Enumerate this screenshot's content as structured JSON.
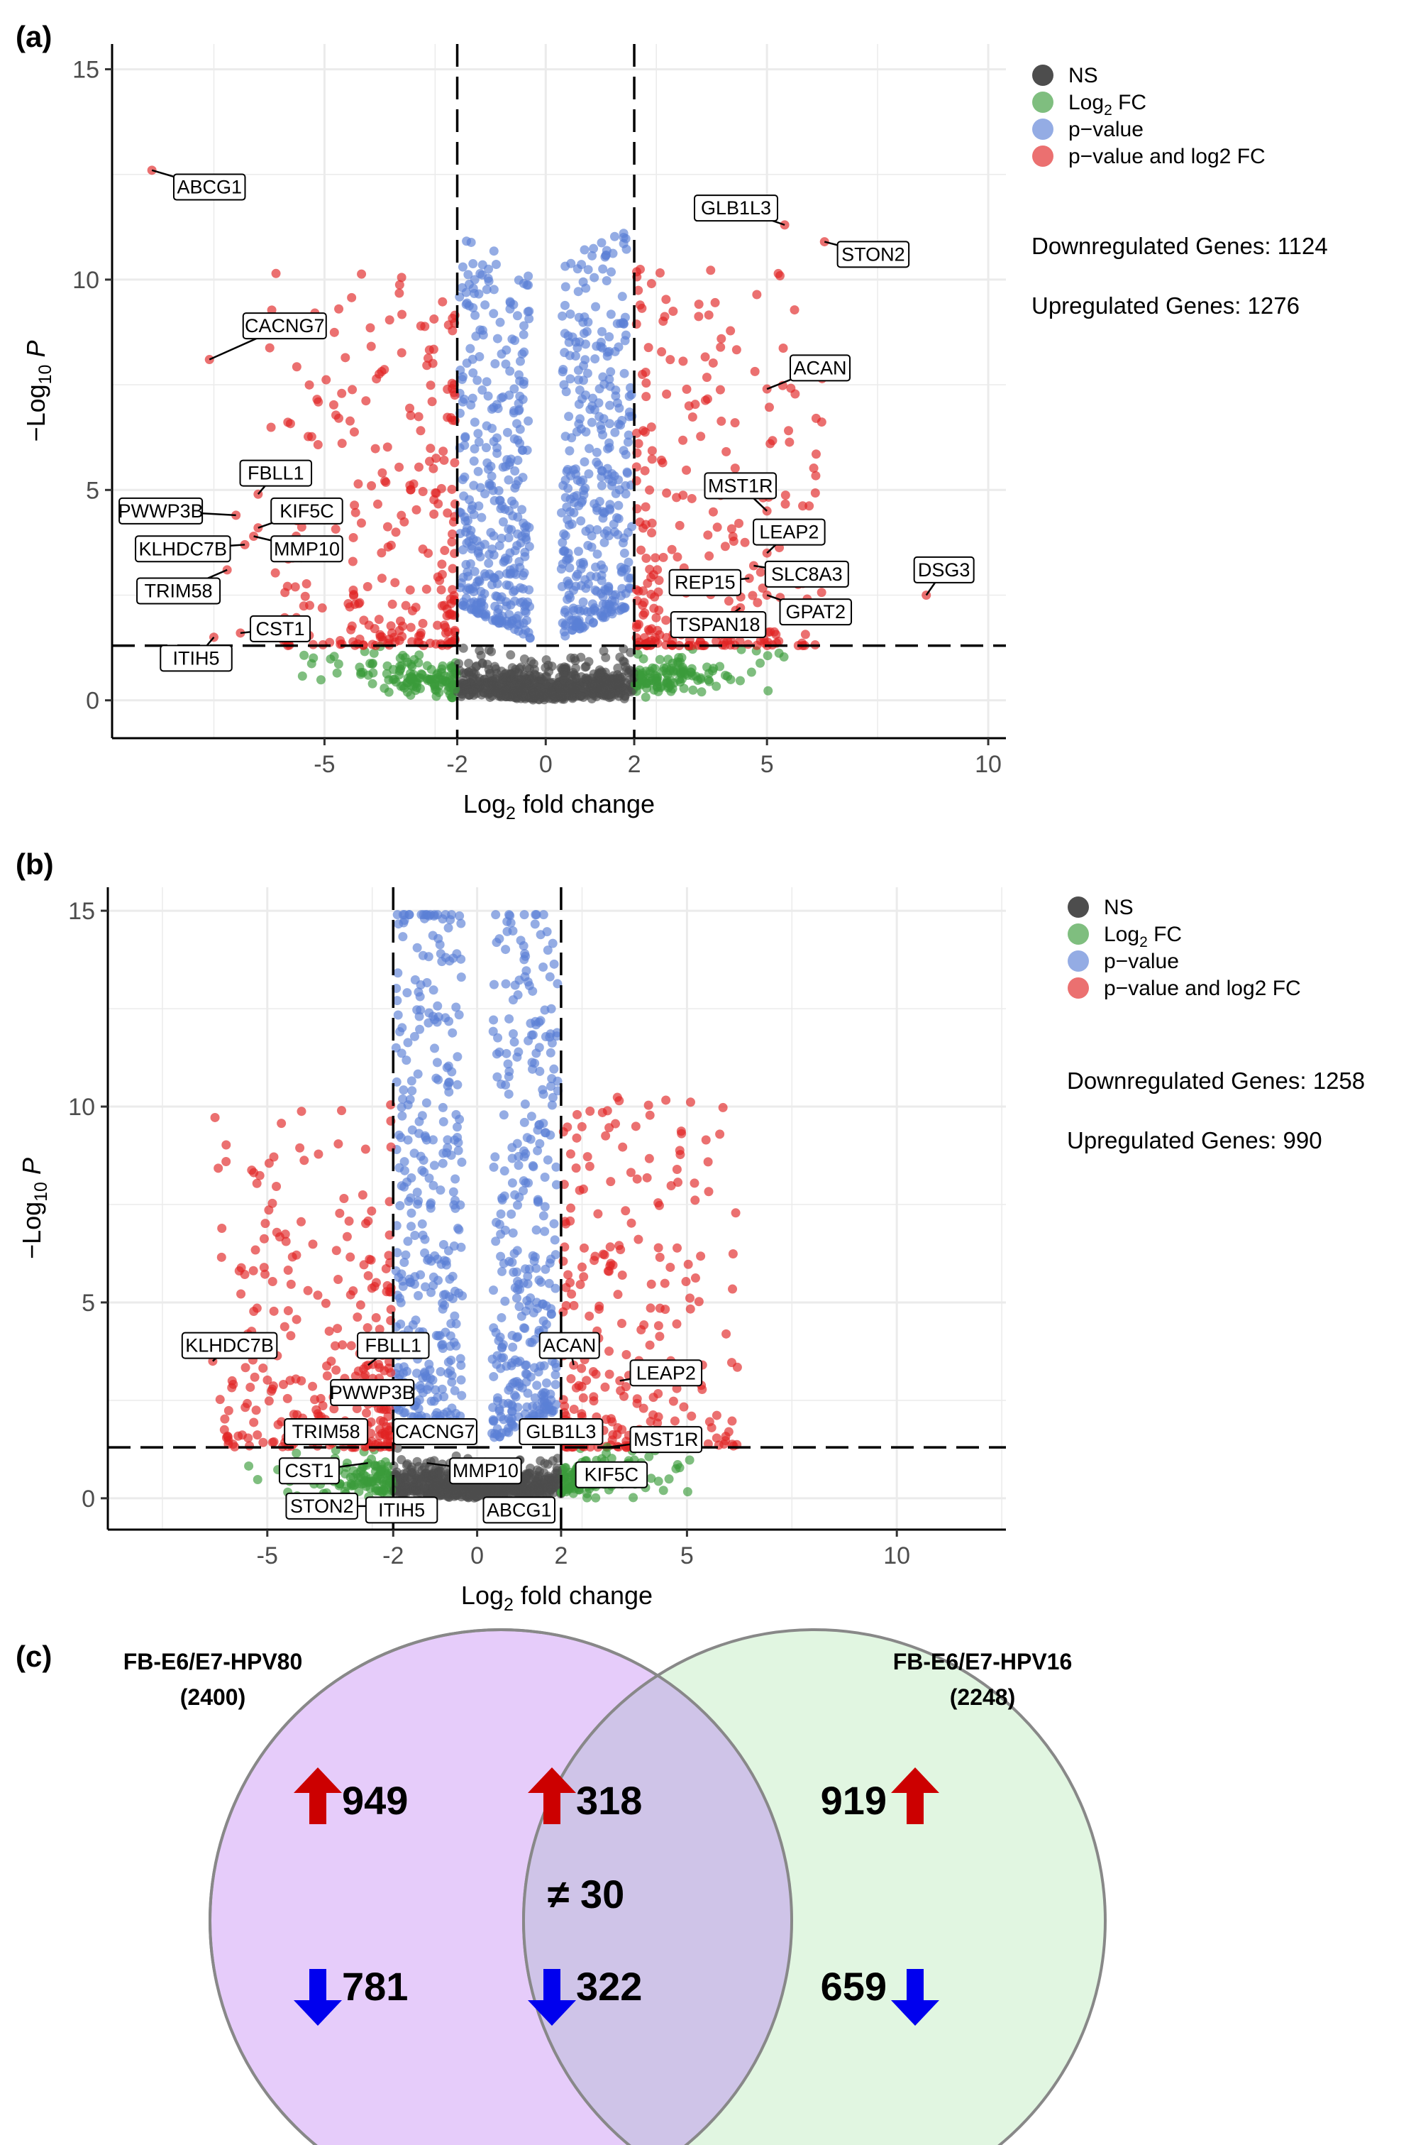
{
  "colors": {
    "ns": "#4d4d4d",
    "log2fc": "#3a9b3a",
    "pvalue": "#5b7fd6",
    "both": "#e02424",
    "grid": "#ebebeb",
    "venn_left": "#e6ccfa",
    "venn_right": "#dcf5dc",
    "up_arrow": "#cc0000",
    "down_arrow": "#0000ee"
  },
  "chart_data": [
    {
      "type": "scatter",
      "panel_label": "(a)",
      "xlabel": "Log2 fold change",
      "ylabel": "−Log10 P",
      "xlim": [
        -9.8,
        10.4
      ],
      "ylim": [
        -0.9,
        15.6
      ],
      "xticks": [
        -5,
        -2,
        0,
        2,
        5,
        10
      ],
      "yticks": [
        0,
        5,
        10,
        15
      ],
      "fc_cutoff": 2,
      "p_cutoff": 1.3,
      "legend": [
        {
          "label": "NS",
          "color_key": "ns"
        },
        {
          "label": "Log2 FC",
          "color_key": "log2fc"
        },
        {
          "label": "p−value",
          "color_key": "pvalue"
        },
        {
          "label": "p−value and log2 FC",
          "color_key": "both"
        }
      ],
      "stats": [
        "Downregulated Genes: 1124",
        "Upregulated Genes: 1276"
      ],
      "genes": [
        {
          "name": "ABCG1",
          "x": -8.9,
          "y": 12.6,
          "lx": -7.6,
          "ly": 12.2
        },
        {
          "name": "GLB1L3",
          "x": 5.4,
          "y": 11.3,
          "lx": 4.3,
          "ly": 11.7
        },
        {
          "name": "STON2",
          "x": 6.3,
          "y": 10.9,
          "lx": 7.4,
          "ly": 10.6
        },
        {
          "name": "CACNG7",
          "x": -7.6,
          "y": 8.1,
          "lx": -5.9,
          "ly": 8.9
        },
        {
          "name": "ACAN",
          "x": 5.0,
          "y": 7.4,
          "lx": 6.2,
          "ly": 7.9
        },
        {
          "name": "FBLL1",
          "x": -6.5,
          "y": 4.9,
          "lx": -6.1,
          "ly": 5.4
        },
        {
          "name": "MST1R",
          "x": 5.0,
          "y": 4.5,
          "lx": 4.4,
          "ly": 5.1
        },
        {
          "name": "PWWP3B",
          "x": -7.0,
          "y": 4.4,
          "lx": -8.7,
          "ly": 4.5
        },
        {
          "name": "KIF5C",
          "x": -6.5,
          "y": 4.1,
          "lx": -5.4,
          "ly": 4.5
        },
        {
          "name": "LEAP2",
          "x": 5.0,
          "y": 3.5,
          "lx": 5.5,
          "ly": 4.0
        },
        {
          "name": "KLHDC7B",
          "x": -6.8,
          "y": 3.7,
          "lx": -8.2,
          "ly": 3.6
        },
        {
          "name": "MMP10",
          "x": -6.6,
          "y": 3.9,
          "lx": -5.4,
          "ly": 3.6
        },
        {
          "name": "DSG3",
          "x": 8.6,
          "y": 2.5,
          "lx": 9.0,
          "ly": 3.1
        },
        {
          "name": "REP15",
          "x": 4.6,
          "y": 2.9,
          "lx": 3.6,
          "ly": 2.8
        },
        {
          "name": "SLC8A3",
          "x": 4.7,
          "y": 3.2,
          "lx": 5.9,
          "ly": 3.0
        },
        {
          "name": "TRIM58",
          "x": -7.2,
          "y": 3.1,
          "lx": -8.3,
          "ly": 2.6
        },
        {
          "name": "GPAT2",
          "x": 5.0,
          "y": 2.5,
          "lx": 6.1,
          "ly": 2.1
        },
        {
          "name": "TSPAN18",
          "x": 4.4,
          "y": 2.2,
          "lx": 3.9,
          "ly": 1.8
        },
        {
          "name": "CST1",
          "x": -6.9,
          "y": 1.6,
          "lx": -6.0,
          "ly": 1.7
        },
        {
          "name": "ITIH5",
          "x": -7.5,
          "y": 1.5,
          "lx": -7.9,
          "ly": 1.0
        }
      ]
    },
    {
      "type": "scatter",
      "panel_label": "(b)",
      "xlabel": "Log2 fold change",
      "ylabel": "−Log10 P",
      "xlim": [
        -8.8,
        12.6
      ],
      "ylim": [
        -0.8,
        15.6
      ],
      "xticks": [
        -5,
        -2,
        0,
        2,
        5,
        10
      ],
      "yticks": [
        0,
        5,
        10,
        15
      ],
      "fc_cutoff": 2,
      "p_cutoff": 1.3,
      "legend": [
        {
          "label": "NS",
          "color_key": "ns"
        },
        {
          "label": "Log2 FC",
          "color_key": "log2fc"
        },
        {
          "label": "p−value",
          "color_key": "pvalue"
        },
        {
          "label": "p−value and log2 FC",
          "color_key": "both"
        }
      ],
      "stats": [
        "Downregulated Genes: 1258",
        "Upregulated Genes: 990"
      ],
      "genes": [
        {
          "name": "KLHDC7B",
          "x": -6.3,
          "y": 3.5,
          "lx": -5.9,
          "ly": 3.9
        },
        {
          "name": "FBLL1",
          "x": -2.6,
          "y": 3.4,
          "lx": -2.0,
          "ly": 3.9
        },
        {
          "name": "ACAN",
          "x": 2.3,
          "y": 3.4,
          "lx": 2.2,
          "ly": 3.9
        },
        {
          "name": "LEAP2",
          "x": 3.4,
          "y": 3.0,
          "lx": 4.5,
          "ly": 3.2
        },
        {
          "name": "PWWP3B",
          "x": -2.6,
          "y": 2.4,
          "lx": -2.5,
          "ly": 2.7
        },
        {
          "name": "TRIM58",
          "x": -3.0,
          "y": 1.7,
          "lx": -3.6,
          "ly": 1.7
        },
        {
          "name": "CACNG7",
          "x": -1.9,
          "y": 1.6,
          "lx": -1.0,
          "ly": 1.7
        },
        {
          "name": "GLB1L3",
          "x": 2.4,
          "y": 1.5,
          "lx": 2.0,
          "ly": 1.7
        },
        {
          "name": "MST1R",
          "x": 3.1,
          "y": 1.3,
          "lx": 4.5,
          "ly": 1.5
        },
        {
          "name": "CST1",
          "x": -2.6,
          "y": 0.9,
          "lx": -4.0,
          "ly": 0.7
        },
        {
          "name": "MMP10",
          "x": -1.2,
          "y": 0.9,
          "lx": 0.2,
          "ly": 0.7
        },
        {
          "name": "KIF5C",
          "x": 2.6,
          "y": 0.7,
          "lx": 3.2,
          "ly": 0.6
        },
        {
          "name": "STON2",
          "x": -2.1,
          "y": -0.2,
          "lx": -3.7,
          "ly": -0.2
        },
        {
          "name": "ITIH5",
          "x": -1.6,
          "y": -0.2,
          "lx": -1.8,
          "ly": -0.3
        },
        {
          "name": "ABCG1",
          "x": 1.0,
          "y": 0.0,
          "lx": 1.0,
          "ly": -0.3
        }
      ]
    },
    {
      "type": "venn",
      "panel_label": "(c)",
      "left_title": "FB-E6/E7-HPV80",
      "left_total": "(2400)",
      "right_title": "FB-E6/E7-HPV16",
      "right_total": "(2248)",
      "left_up": "949",
      "left_down": "781",
      "shared_up": "318",
      "shared_down": "322",
      "shared_discordant": "≠ 30",
      "right_up": "919",
      "right_down": "659"
    }
  ]
}
